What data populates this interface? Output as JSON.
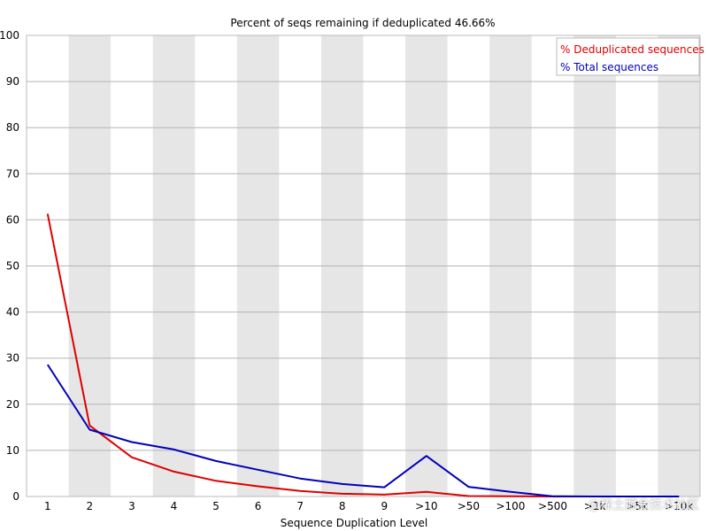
{
  "chart_data": {
    "type": "line",
    "title": "Percent of seqs remaining if deduplicated 46.66%",
    "xlabel": "Sequence Duplication Level",
    "ylabel": "",
    "ylim": [
      0,
      100
    ],
    "yticks": [
      0,
      10,
      20,
      30,
      40,
      50,
      60,
      70,
      80,
      90,
      100
    ],
    "categories": [
      "1",
      "2",
      "3",
      "4",
      "5",
      "6",
      "7",
      "8",
      "9",
      ">10",
      ">50",
      ">100",
      ">500",
      ">1k",
      ">5k",
      ">10k"
    ],
    "grid": true,
    "legend_position": "top-right",
    "series": [
      {
        "name": "% Deduplicated sequences",
        "color": "#dd0000",
        "values": [
          61.3,
          15.4,
          8.5,
          5.4,
          3.4,
          2.2,
          1.2,
          0.6,
          0.4,
          1.0,
          0.1,
          0.05,
          0.0,
          0.0,
          0.0,
          0.0
        ]
      },
      {
        "name": "% Total sequences",
        "color": "#0000bb",
        "values": [
          28.6,
          14.5,
          11.8,
          10.2,
          7.7,
          5.8,
          3.9,
          2.7,
          2.0,
          8.8,
          2.1,
          1.0,
          0.05,
          0.0,
          0.0,
          0.0
        ]
      }
    ]
  },
  "watermark_text": "@稀土掘金技术社区"
}
